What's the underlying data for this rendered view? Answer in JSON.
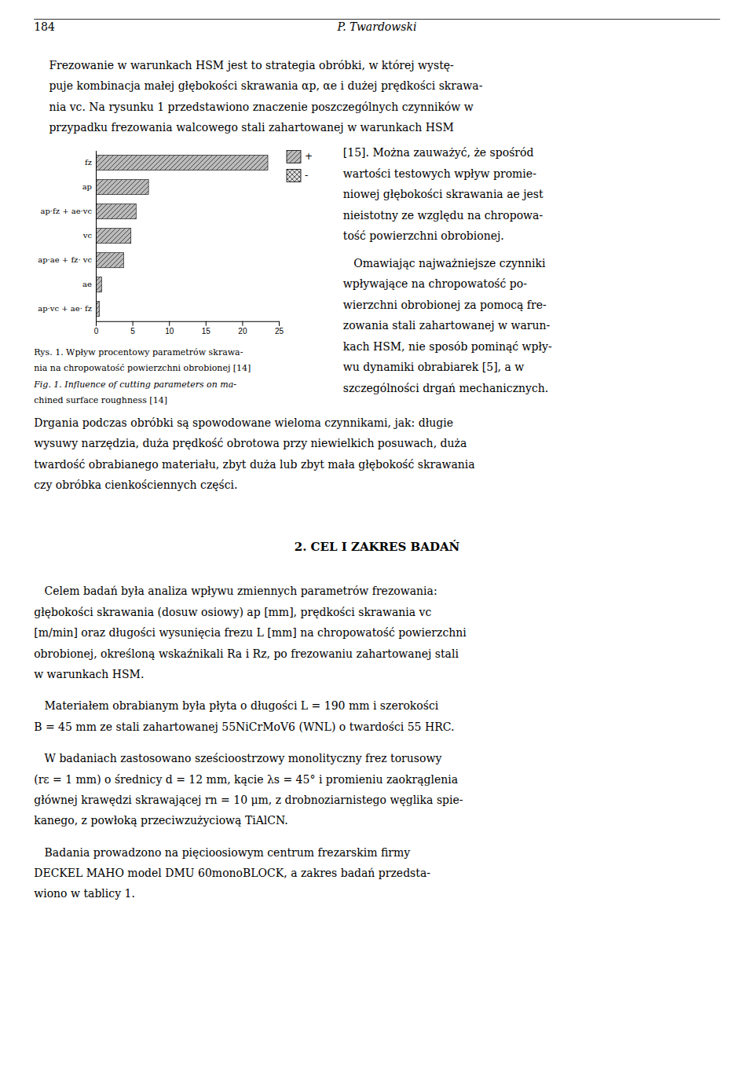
{
  "chart_data": {
    "type": "bar",
    "orientation": "horizontal",
    "title": [
      "Rys. 1. Wpływ procentowy parametrów skrawa-",
      "nia na chropowatość powierzchni obrobionej [14]"
    ],
    "subtitle": [
      "Fig. 1. Influence of cutting parameters on ma-",
      "chined surface roughness [14]"
    ],
    "categories": [
      "fz",
      "ap",
      "ap·fz + ae·vc",
      "vc",
      "ap·ae + fz· vc",
      "ae",
      "ap·vc + ae· fz"
    ],
    "series": [
      {
        "name": "+",
        "color": "#bbbbbb",
        "values": [
          23.5,
          7.2,
          5.5,
          4.8,
          3.8,
          0.8,
          0.5
        ]
      },
      {
        "name": "-",
        "color": "#dddddd",
        "values": [
          null,
          null,
          null,
          null,
          null,
          null,
          null
        ]
      }
    ],
    "xlim": [
      0,
      25
    ],
    "xticks": [
      0,
      5,
      10,
      15,
      20,
      25
    ],
    "grid": false,
    "legend": "upper right"
  },
  "page": {
    "page_number": "184",
    "author": "P. Twardowski",
    "intro_lines": [
      "Frezowanie w warunkach HSM jest to strategia obróbki, w której wystę-",
      "puje kombinacja małej głębokości skrawania αp, αe i dużej prędkości skrawa-",
      "nia vc. Na rysunku 1 przedstawiono znaczenie poszczególnych czynników w",
      "przypadku frezowania walcowego stali zahartowanej w warunkach HSM"
    ],
    "right_col1_lines": [
      "[15]. Można zauważyć, że spośród",
      "wartości testowych wpływ promie-",
      "niowej głębokości skrawania ae jest",
      "nieistotny ze względu na chropowa-",
      "tość powierzchni obrobionej."
    ],
    "right_col2_lines": [
      "   Omawiając najważniejsze czynniki",
      "wpływające na chropowatość po-",
      "wierzchni obrobionej za pomocą fre-",
      "zowania stali zahartowanej w warun-",
      "kach HSM, nie sposób pominąć wpły-",
      "wu dynamiki obrabiarek [5], a w",
      "szczególności drgań mechanicznych."
    ],
    "para3_lines": [
      "Drgania podczas obróbki są spowodowane wieloma czynnikami, jak: długie",
      "wysuwy narzędzia, duża prędkość obrotowa przy niewielkich posuwach, duża",
      "twardość obrabianego materiału, zbyt duża lub zbyt mała głębokość skrawania",
      "czy obróbka cienkościennych części."
    ],
    "section_header": "2. CEL I ZAKRES BADAŃ",
    "para4_lines": [
      "   Celem badań była analiza wpływu zmiennych parametrów frezowania:",
      "głębokości skrawania (dosuw osiowy) ap [mm], prędkości skrawania vc",
      "[m/min] oraz długości wysunięcia frezu L [mm] na chropowatość powierzchni",
      "obrobionej, określoną wskaźnikali Ra i Rz, po frezowaniu zahartowanej stali",
      "w warunkach HSM."
    ],
    "para5_lines": [
      "   Materiałem obrabianym była płyta o długości L = 190 mm i szerokości",
      "B = 45 mm ze stali zahartowanej 55NiCrMoV6 (WNL) o twardości 55 HRC."
    ],
    "para6_lines": [
      "   W badaniach zastosowano sześcioostrzowy monolityczny frez torusowy",
      "(rε = 1 mm) o średnicy d = 12 mm, kącie λs = 45° i promieniu zaokrąglenia",
      "głównej krawędzi skrawającej rn = 10 μm, z drobnoziarnistego węglika spie-",
      "kanego, z powłoką przeciwzużyciową TiAlCN."
    ],
    "para7_lines": [
      "   Badania prowadzono na pięcioosiowym centrum frezarskim firmy",
      "DECKEL MAHO model DMU 60monoBLOCK, a zakres badań przedsta-",
      "wiono w tablicy 1."
    ]
  }
}
